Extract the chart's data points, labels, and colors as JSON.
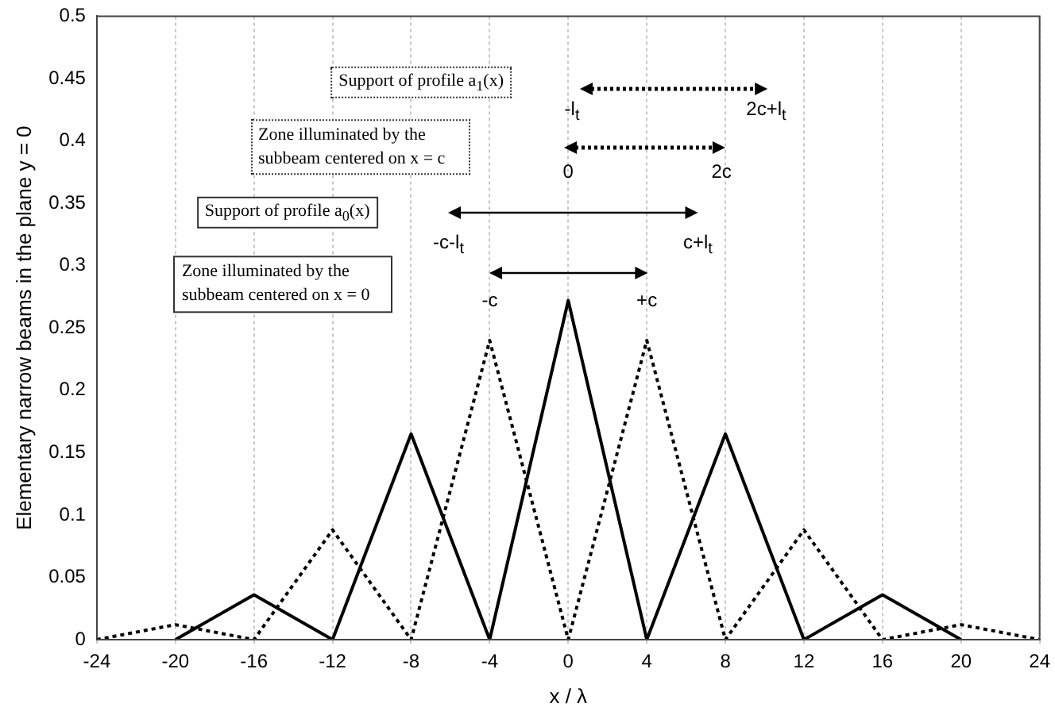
{
  "chart_data": {
    "type": "line",
    "xlabel": "x / λ",
    "ylabel": "Elementary narrow beams in the plane y = 0",
    "xlim": [
      -24,
      24
    ],
    "xticks": [
      -24,
      -20,
      -16,
      -12,
      -8,
      -4,
      0,
      4,
      8,
      12,
      16,
      20,
      24
    ],
    "ylim": [
      0,
      0.5
    ],
    "yticks": [
      0,
      0.05,
      0.1,
      0.15,
      0.2,
      0.25,
      0.3,
      0.35,
      0.4,
      0.45,
      0.5
    ],
    "grid": "x",
    "marker": "none",
    "series": [
      {
        "color": "#000000",
        "line_style": "solid",
        "x": [
          -20,
          -16,
          -12,
          -8,
          -4,
          0,
          4,
          8,
          12,
          16,
          20
        ],
        "values": [
          0,
          0.036,
          0,
          0.165,
          0,
          0.272,
          0,
          0.165,
          0,
          0.036,
          0
        ]
      },
      {
        "color": "#000000",
        "line_style": "dotted",
        "x": [
          -24,
          -20,
          -16,
          -12,
          -8,
          -4,
          0,
          4,
          8,
          12,
          16,
          20,
          24
        ],
        "values": [
          0,
          0.012,
          0,
          0.088,
          0,
          0.24,
          0,
          0.24,
          0,
          0.088,
          0,
          0.012,
          0
        ]
      }
    ],
    "annotations": [
      "Support of profile a$_{1}$(x)",
      "Zone illuminated by the subbeam centered on x = c",
      "Support of profile a$_{0}$(x)",
      "Zone illuminated by the subbeam centered on x = 0",
      "-l$_{t}$",
      "2c+l$_{t}$",
      "0",
      "2c",
      "-c-l$_{t}$",
      "c+l$_{t}$",
      "-c",
      "+c"
    ]
  }
}
